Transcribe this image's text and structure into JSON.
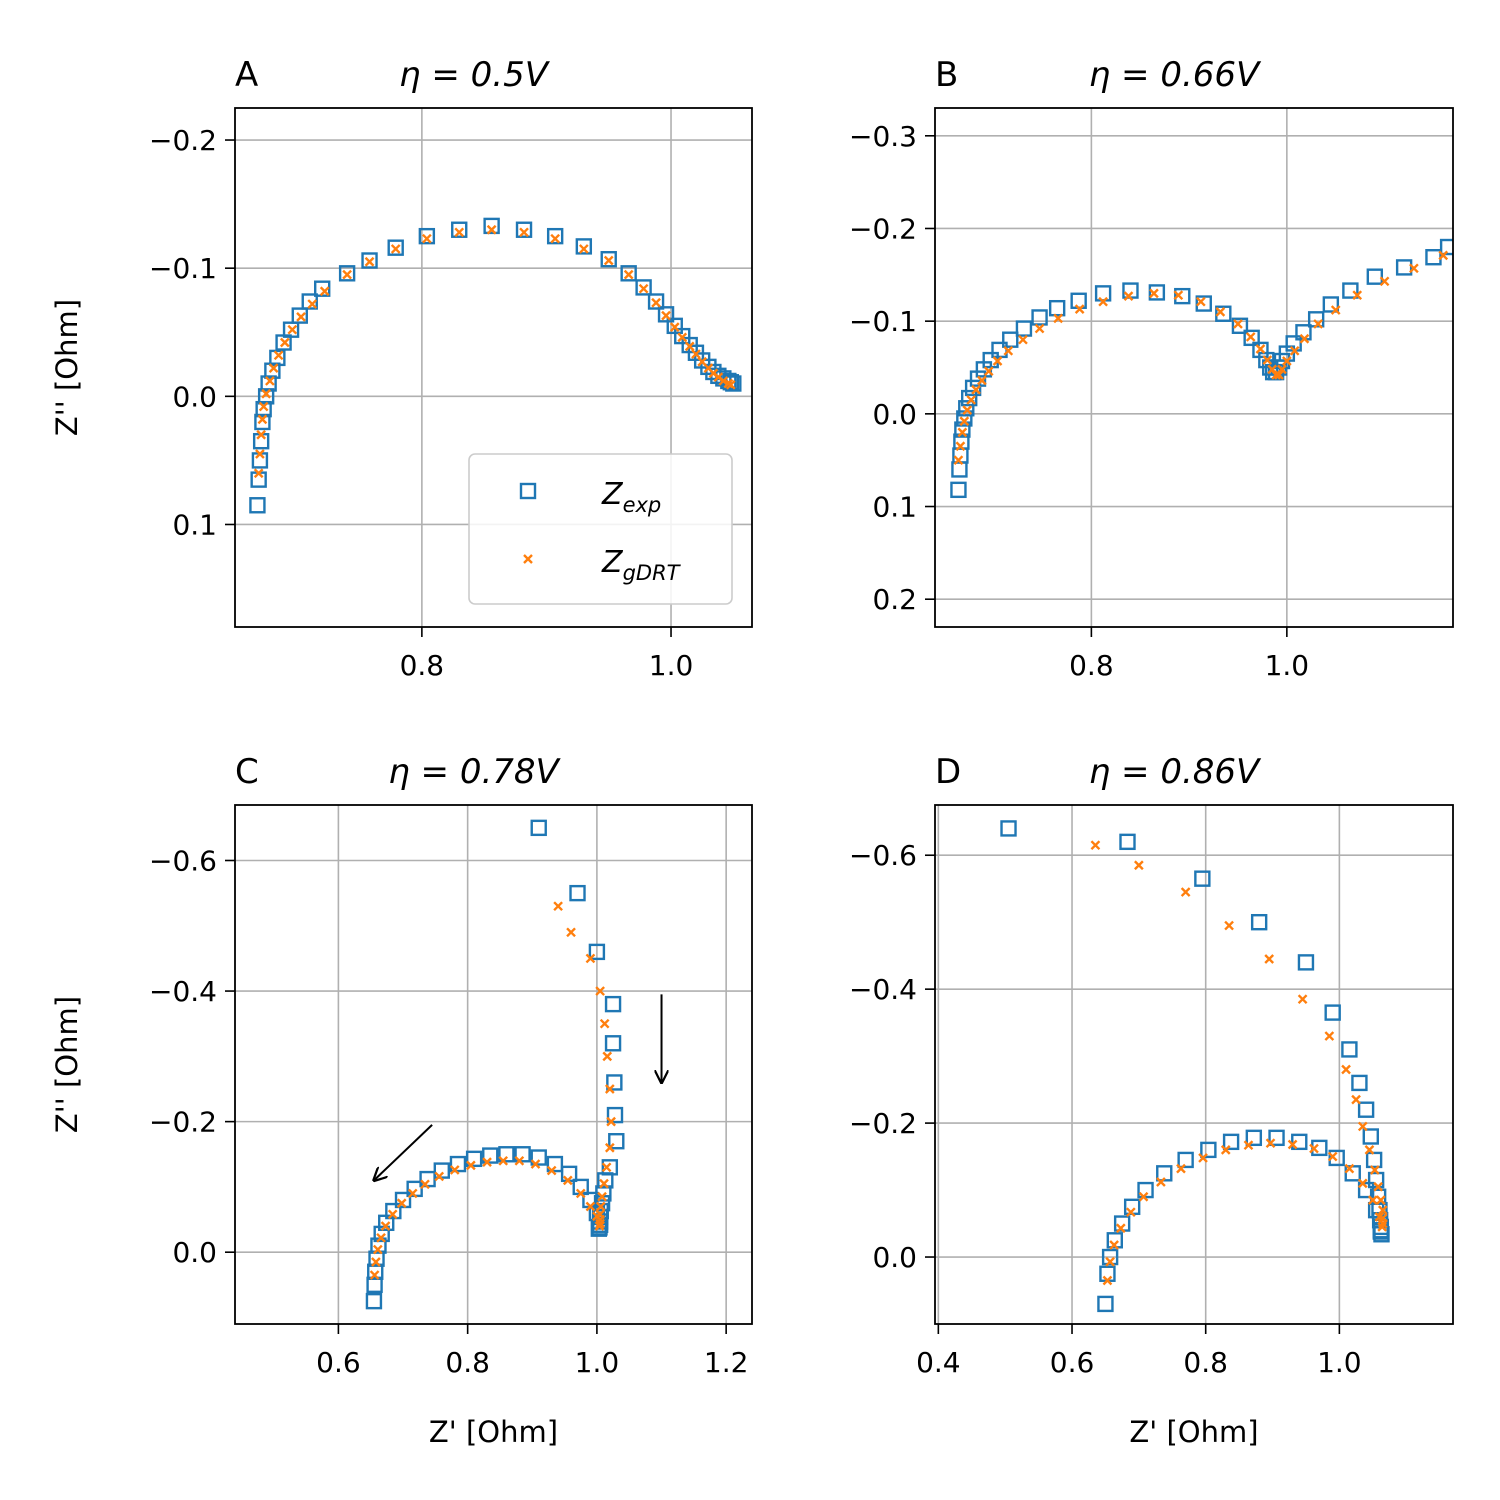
{
  "colors": {
    "exp": "#1f77b4",
    "gdrt": "#ff7f0e",
    "grid": "#b0b0b0",
    "axis": "#000000"
  },
  "chart_data": [
    {
      "id": "A",
      "type": "scatter",
      "panel_label": "A",
      "title": "η = 0.5V",
      "xlabel": "",
      "ylabel": "Z'' [Ohm]",
      "xlim": [
        0.65,
        1.065
      ],
      "ylim": [
        0.18,
        -0.225
      ],
      "xticks": [
        0.8,
        1.0
      ],
      "xtick_labels": [
        "0.8",
        "1.0"
      ],
      "yticks": [
        -0.2,
        -0.1,
        0.0,
        0.1
      ],
      "ytick_labels": [
        "−0.2",
        "−0.1",
        "0.0",
        "0.1"
      ],
      "grid": true,
      "legend": "lower-right",
      "legend_entries": [
        {
          "label": "Z",
          "sub": "exp"
        },
        {
          "label": "Z",
          "sub": "gDRT"
        }
      ],
      "series": [
        {
          "name": "Z_exp",
          "marker": "square",
          "x": [
            0.668,
            0.669,
            0.67,
            0.671,
            0.672,
            0.673,
            0.675,
            0.677,
            0.68,
            0.684,
            0.689,
            0.695,
            0.702,
            0.71,
            0.72,
            0.74,
            0.758,
            0.779,
            0.804,
            0.83,
            0.856,
            0.882,
            0.907,
            0.93,
            0.95,
            0.966,
            0.978,
            0.988,
            0.996,
            1.003,
            1.009,
            1.015,
            1.02,
            1.025,
            1.03,
            1.034,
            1.038,
            1.042,
            1.046,
            1.048,
            1.05
          ],
          "y": [
            0.085,
            0.065,
            0.05,
            0.035,
            0.02,
            0.01,
            0.0,
            -0.01,
            -0.02,
            -0.03,
            -0.042,
            -0.052,
            -0.063,
            -0.074,
            -0.084,
            -0.096,
            -0.106,
            -0.116,
            -0.125,
            -0.13,
            -0.133,
            -0.13,
            -0.125,
            -0.117,
            -0.107,
            -0.096,
            -0.085,
            -0.074,
            -0.064,
            -0.055,
            -0.047,
            -0.04,
            -0.034,
            -0.028,
            -0.023,
            -0.019,
            -0.016,
            -0.014,
            -0.012,
            -0.011,
            -0.01
          ]
        },
        {
          "name": "Z_gDRT",
          "marker": "x",
          "x": [
            0.669,
            0.67,
            0.671,
            0.672,
            0.673,
            0.675,
            0.678,
            0.681,
            0.685,
            0.69,
            0.696,
            0.703,
            0.712,
            0.722,
            0.74,
            0.758,
            0.779,
            0.804,
            0.83,
            0.856,
            0.882,
            0.907,
            0.93,
            0.95,
            0.966,
            0.978,
            0.988,
            0.996,
            1.003,
            1.009,
            1.015,
            1.02,
            1.025,
            1.03,
            1.034,
            1.038,
            1.042,
            1.046,
            1.048
          ],
          "y": [
            0.06,
            0.045,
            0.03,
            0.018,
            0.008,
            -0.002,
            -0.012,
            -0.022,
            -0.032,
            -0.042,
            -0.052,
            -0.062,
            -0.072,
            -0.082,
            -0.095,
            -0.105,
            -0.115,
            -0.123,
            -0.128,
            -0.13,
            -0.128,
            -0.123,
            -0.115,
            -0.106,
            -0.095,
            -0.084,
            -0.073,
            -0.063,
            -0.054,
            -0.046,
            -0.039,
            -0.033,
            -0.027,
            -0.022,
            -0.018,
            -0.015,
            -0.012,
            -0.01,
            -0.009
          ]
        }
      ]
    },
    {
      "id": "B",
      "type": "scatter",
      "panel_label": "B",
      "title": "η = 0.66V",
      "xlabel": "",
      "ylabel": "",
      "xlim": [
        0.64,
        1.17
      ],
      "ylim": [
        0.23,
        -0.33
      ],
      "xticks": [
        0.8,
        1.0
      ],
      "xtick_labels": [
        "0.8",
        "1.0"
      ],
      "yticks": [
        -0.3,
        -0.2,
        -0.1,
        0.0,
        0.1,
        0.2
      ],
      "ytick_labels": [
        "−0.3",
        "−0.2",
        "−0.1",
        "0.0",
        "0.1",
        "0.2"
      ],
      "grid": true,
      "legend": "",
      "series": [
        {
          "name": "Z_exp",
          "marker": "square",
          "x": [
            0.664,
            0.665,
            0.666,
            0.667,
            0.668,
            0.67,
            0.672,
            0.675,
            0.679,
            0.684,
            0.69,
            0.697,
            0.706,
            0.717,
            0.731,
            0.747,
            0.765,
            0.787,
            0.812,
            0.84,
            0.867,
            0.893,
            0.915,
            0.935,
            0.952,
            0.964,
            0.973,
            0.979,
            0.983,
            0.986,
            0.989,
            0.992,
            0.995,
            1.0,
            1.007,
            1.017,
            1.03,
            1.045,
            1.065,
            1.09,
            1.12,
            1.15,
            1.165
          ],
          "y": [
            0.082,
            0.06,
            0.045,
            0.03,
            0.017,
            0.005,
            -0.006,
            -0.017,
            -0.028,
            -0.038,
            -0.048,
            -0.058,
            -0.069,
            -0.08,
            -0.092,
            -0.104,
            -0.114,
            -0.122,
            -0.13,
            -0.133,
            -0.131,
            -0.127,
            -0.119,
            -0.108,
            -0.095,
            -0.082,
            -0.069,
            -0.058,
            -0.05,
            -0.045,
            -0.045,
            -0.05,
            -0.057,
            -0.065,
            -0.076,
            -0.088,
            -0.102,
            -0.118,
            -0.133,
            -0.148,
            -0.158,
            -0.169,
            -0.18
          ]
        },
        {
          "name": "Z_gDRT",
          "marker": "x",
          "x": [
            0.664,
            0.666,
            0.668,
            0.67,
            0.673,
            0.677,
            0.682,
            0.688,
            0.695,
            0.704,
            0.715,
            0.73,
            0.747,
            0.766,
            0.788,
            0.812,
            0.838,
            0.864,
            0.889,
            0.912,
            0.932,
            0.95,
            0.963,
            0.973,
            0.98,
            0.985,
            0.989,
            0.992,
            0.995,
            1.0,
            1.008,
            1.018,
            1.032,
            1.05,
            1.072,
            1.1,
            1.13,
            1.16
          ],
          "y": [
            0.05,
            0.035,
            0.02,
            0.008,
            -0.004,
            -0.015,
            -0.026,
            -0.036,
            -0.046,
            -0.057,
            -0.068,
            -0.08,
            -0.092,
            -0.103,
            -0.113,
            -0.121,
            -0.127,
            -0.13,
            -0.128,
            -0.121,
            -0.11,
            -0.097,
            -0.083,
            -0.07,
            -0.058,
            -0.048,
            -0.042,
            -0.042,
            -0.048,
            -0.057,
            -0.068,
            -0.081,
            -0.097,
            -0.112,
            -0.128,
            -0.143,
            -0.157,
            -0.171
          ]
        }
      ]
    },
    {
      "id": "C",
      "type": "scatter",
      "panel_label": "C",
      "title": "η = 0.78V",
      "xlabel": "Z' [Ohm]",
      "ylabel": "Z'' [Ohm]",
      "xlim": [
        0.44,
        1.24
      ],
      "ylim": [
        0.11,
        -0.685
      ],
      "xticks": [
        0.6,
        0.8,
        1.0,
        1.2
      ],
      "xtick_labels": [
        "0.6",
        "0.8",
        "1.0",
        "1.2"
      ],
      "yticks": [
        -0.6,
        -0.4,
        -0.2,
        0.0
      ],
      "ytick_labels": [
        "−0.6",
        "−0.4",
        "−0.2",
        "0.0"
      ],
      "grid": true,
      "legend": "",
      "annotations": [
        {
          "type": "arrow",
          "from": [
            1.1,
            -0.395
          ],
          "to": [
            1.1,
            -0.26
          ]
        },
        {
          "type": "arrow",
          "from": [
            0.745,
            -0.195
          ],
          "to": [
            0.655,
            -0.11
          ]
        }
      ],
      "series": [
        {
          "name": "Z_exp",
          "marker": "square",
          "x": [
            0.91,
            0.97,
            1.0,
            1.025,
            1.025,
            1.027,
            1.028,
            1.03,
            1.02,
            1.013,
            1.01,
            1.008,
            1.006,
            1.005,
            1.005,
            1.005,
            1.004,
            1.003,
            1.0,
            0.99,
            0.975,
            0.957,
            0.935,
            0.91,
            0.885,
            0.86,
            0.835,
            0.81,
            0.785,
            0.76,
            0.738,
            0.718,
            0.7,
            0.685,
            0.674,
            0.667,
            0.662,
            0.659,
            0.657,
            0.656,
            0.655
          ],
          "y": [
            -0.65,
            -0.55,
            -0.46,
            -0.38,
            -0.32,
            -0.26,
            -0.21,
            -0.17,
            -0.13,
            -0.11,
            -0.09,
            -0.075,
            -0.063,
            -0.054,
            -0.047,
            -0.042,
            -0.038,
            -0.036,
            -0.06,
            -0.08,
            -0.1,
            -0.12,
            -0.135,
            -0.145,
            -0.15,
            -0.15,
            -0.148,
            -0.143,
            -0.135,
            -0.125,
            -0.112,
            -0.097,
            -0.08,
            -0.063,
            -0.045,
            -0.028,
            -0.01,
            0.01,
            0.03,
            0.05,
            0.075
          ]
        },
        {
          "name": "Z_gDRT",
          "marker": "x",
          "x": [
            0.94,
            0.96,
            0.99,
            1.005,
            1.012,
            1.016,
            1.02,
            1.022,
            1.02,
            1.015,
            1.011,
            1.008,
            1.006,
            1.005,
            1.005,
            1.005,
            1.004,
            1.0,
            0.99,
            0.975,
            0.955,
            0.93,
            0.905,
            0.88,
            0.855,
            0.83,
            0.805,
            0.78,
            0.756,
            0.734,
            0.715,
            0.698,
            0.684,
            0.673,
            0.666,
            0.661,
            0.658,
            0.656
          ],
          "y": [
            -0.53,
            -0.49,
            -0.45,
            -0.4,
            -0.35,
            -0.3,
            -0.25,
            -0.2,
            -0.16,
            -0.13,
            -0.105,
            -0.085,
            -0.07,
            -0.058,
            -0.05,
            -0.044,
            -0.04,
            -0.055,
            -0.07,
            -0.09,
            -0.11,
            -0.125,
            -0.135,
            -0.14,
            -0.14,
            -0.138,
            -0.133,
            -0.126,
            -0.116,
            -0.104,
            -0.09,
            -0.075,
            -0.058,
            -0.04,
            -0.022,
            -0.004,
            0.015,
            0.035
          ]
        }
      ]
    },
    {
      "id": "D",
      "type": "scatter",
      "panel_label": "D",
      "title": "η = 0.86V",
      "xlabel": "Z' [Ohm]",
      "ylabel": "",
      "xlim": [
        0.395,
        1.17
      ],
      "ylim": [
        0.1,
        -0.675
      ],
      "xticks": [
        0.4,
        0.6,
        0.8,
        1.0
      ],
      "xtick_labels": [
        "0.4",
        "0.6",
        "0.8",
        "1.0"
      ],
      "yticks": [
        -0.6,
        -0.4,
        -0.2,
        0.0
      ],
      "ytick_labels": [
        "−0.6",
        "−0.4",
        "−0.2",
        "0.0"
      ],
      "grid": true,
      "legend": "",
      "series": [
        {
          "name": "Z_exp",
          "marker": "square",
          "x": [
            0.505,
            0.683,
            0.795,
            0.88,
            0.95,
            0.99,
            1.015,
            1.03,
            1.04,
            1.047,
            1.052,
            1.055,
            1.058,
            1.06,
            1.061,
            1.062,
            1.062,
            1.063,
            1.062,
            1.055,
            1.04,
            1.02,
            0.996,
            0.97,
            0.94,
            0.906,
            0.872,
            0.838,
            0.804,
            0.77,
            0.738,
            0.71,
            0.69,
            0.675,
            0.664,
            0.657,
            0.653,
            0.65
          ],
          "y": [
            -0.64,
            -0.62,
            -0.565,
            -0.5,
            -0.44,
            -0.365,
            -0.31,
            -0.26,
            -0.22,
            -0.18,
            -0.145,
            -0.115,
            -0.09,
            -0.07,
            -0.055,
            -0.045,
            -0.038,
            -0.034,
            -0.04,
            -0.07,
            -0.1,
            -0.125,
            -0.148,
            -0.163,
            -0.172,
            -0.178,
            -0.178,
            -0.172,
            -0.16,
            -0.145,
            -0.125,
            -0.1,
            -0.075,
            -0.05,
            -0.025,
            0.0,
            0.025,
            0.07
          ]
        },
        {
          "name": "Z_gDRT",
          "marker": "x",
          "x": [
            0.635,
            0.7,
            0.77,
            0.835,
            0.895,
            0.945,
            0.985,
            1.01,
            1.025,
            1.035,
            1.045,
            1.053,
            1.058,
            1.062,
            1.065,
            1.065,
            1.065,
            1.064,
            1.06,
            1.05,
            1.035,
            1.015,
            0.99,
            0.962,
            0.93,
            0.897,
            0.864,
            0.83,
            0.796,
            0.763,
            0.733,
            0.707,
            0.688,
            0.673,
            0.663,
            0.657,
            0.653
          ],
          "y": [
            -0.615,
            -0.585,
            -0.545,
            -0.495,
            -0.445,
            -0.385,
            -0.33,
            -0.28,
            -0.235,
            -0.195,
            -0.16,
            -0.13,
            -0.105,
            -0.085,
            -0.07,
            -0.058,
            -0.05,
            -0.045,
            -0.06,
            -0.085,
            -0.11,
            -0.132,
            -0.15,
            -0.162,
            -0.168,
            -0.17,
            -0.167,
            -0.16,
            -0.148,
            -0.132,
            -0.112,
            -0.09,
            -0.067,
            -0.043,
            -0.018,
            0.007,
            0.035
          ]
        }
      ]
    }
  ]
}
